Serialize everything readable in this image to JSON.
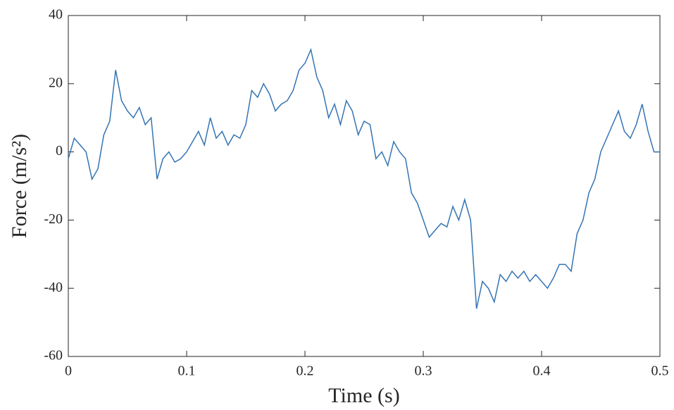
{
  "chart_data": {
    "type": "line",
    "xlabel": "Time (s)",
    "ylabel": "Force (m/s²)",
    "x": [
      0,
      0.005,
      0.01,
      0.015,
      0.02,
      0.025,
      0.03,
      0.035,
      0.04,
      0.045,
      0.05,
      0.055,
      0.06,
      0.065,
      0.07,
      0.075,
      0.08,
      0.085,
      0.09,
      0.095,
      0.1,
      0.105,
      0.11,
      0.115,
      0.12,
      0.125,
      0.13,
      0.135,
      0.14,
      0.145,
      0.15,
      0.155,
      0.16,
      0.165,
      0.17,
      0.175,
      0.18,
      0.185,
      0.19,
      0.195,
      0.2,
      0.205,
      0.21,
      0.215,
      0.22,
      0.225,
      0.23,
      0.235,
      0.24,
      0.245,
      0.25,
      0.255,
      0.26,
      0.265,
      0.27,
      0.275,
      0.28,
      0.285,
      0.29,
      0.295,
      0.3,
      0.305,
      0.31,
      0.315,
      0.32,
      0.325,
      0.33,
      0.335,
      0.34,
      0.345,
      0.35,
      0.355,
      0.36,
      0.365,
      0.37,
      0.375,
      0.38,
      0.385,
      0.39,
      0.395,
      0.4,
      0.405,
      0.41,
      0.415,
      0.42,
      0.425,
      0.43,
      0.435,
      0.44,
      0.445,
      0.45,
      0.455,
      0.46,
      0.465,
      0.47,
      0.475,
      0.48,
      0.485,
      0.49,
      0.495,
      0.5
    ],
    "series": [
      {
        "name": "Force",
        "color": "#3474b4",
        "values": [
          -2,
          4,
          2,
          0,
          -8,
          -5,
          5,
          9,
          24,
          15,
          12,
          10,
          13,
          8,
          10,
          -8,
          -2,
          0,
          -3,
          -2,
          0,
          3,
          6,
          2,
          10,
          4,
          6,
          2,
          5,
          4,
          8,
          18,
          16,
          20,
          17,
          12,
          14,
          15,
          18,
          24,
          26,
          30,
          22,
          18,
          10,
          14,
          8,
          15,
          12,
          5,
          9,
          8,
          -2,
          0,
          -4,
          3,
          0,
          -2,
          -12,
          -15,
          -20,
          -25,
          -23,
          -21,
          -22,
          -16,
          -20,
          -14,
          -20,
          -46,
          -38,
          -40,
          -44,
          -36,
          -38,
          -35,
          -37,
          -35,
          -38,
          -36,
          -38,
          -40,
          -37,
          -33,
          -33,
          -35,
          -24,
          -20,
          -12,
          -8,
          0,
          4,
          8,
          12,
          6,
          4,
          8,
          14,
          6,
          0,
          0
        ]
      }
    ],
    "xlim": [
      0,
      0.5
    ],
    "xticks": [
      0,
      0.1,
      0.2,
      0.3,
      0.4,
      0.5
    ],
    "ylim": [
      -60,
      40
    ],
    "yticks": [
      -60,
      -40,
      -20,
      0,
      20,
      40
    ]
  }
}
